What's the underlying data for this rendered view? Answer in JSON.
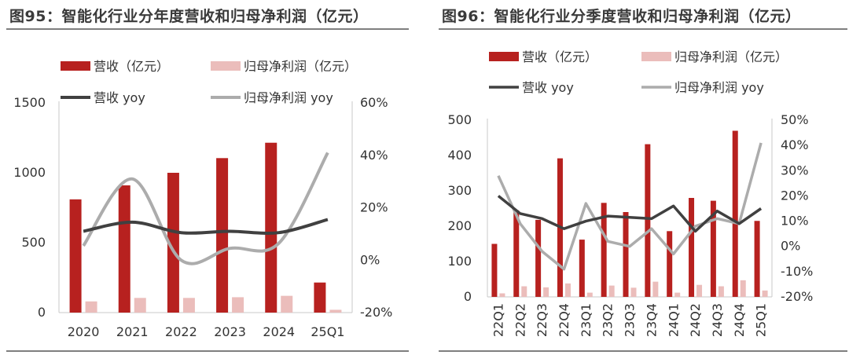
{
  "colors": {
    "revenue_bar": "#B7211F",
    "profit_bar": "#EBBDBB",
    "revenue_yoy_line": "#404040",
    "profit_yoy_line": "#ACACAC"
  },
  "charts": [
    {
      "title": "图95：智能化行业分年度营收和归母净利润（亿元）",
      "chart_data": {
        "type": "bar",
        "categories": [
          "2020",
          "2021",
          "2022",
          "2023",
          "2024",
          "25Q1"
        ],
        "series": [
          {
            "name": "营收（亿元）",
            "type": "bar",
            "axis": "left",
            "values": [
              810,
              910,
              1000,
              1105,
              1215,
              215
            ]
          },
          {
            "name": "归母净利润（亿元）",
            "type": "bar",
            "axis": "left",
            "values": [
              80,
              105,
              105,
              110,
              120,
              20
            ]
          },
          {
            "name": "营收 yoy",
            "type": "line",
            "axis": "right",
            "values": [
              0.11,
              0.145,
              0.105,
              0.11,
              0.105,
              0.155
            ]
          },
          {
            "name": "归母净利润 yoy",
            "type": "line",
            "axis": "right",
            "values": [
              0.055,
              0.31,
              0,
              0.045,
              0.065,
              0.41
            ]
          }
        ],
        "ylim": [
          0,
          1500
        ],
        "yticks": [
          "0",
          "500",
          "1000",
          "1500"
        ],
        "y2lim": [
          -0.2,
          0.6
        ],
        "y2ticks": [
          "-20%",
          "0%",
          "20%",
          "40%",
          "60%"
        ],
        "legend": "top"
      }
    },
    {
      "title": "图96：智能化行业分季度营收和归母净利润（亿元）",
      "chart_data": {
        "type": "bar",
        "categories": [
          "22Q1",
          "22Q2",
          "22Q3",
          "22Q4",
          "23Q1",
          "23Q2",
          "23Q3",
          "23Q4",
          "24Q1",
          "24Q2",
          "24Q3",
          "24Q4",
          "25Q1"
        ],
        "series": [
          {
            "name": "营收（亿元）",
            "type": "bar",
            "axis": "left",
            "values": [
              150,
              245,
              218,
              392,
              162,
              266,
              240,
              432,
              186,
              280,
              272,
              470,
              215
            ]
          },
          {
            "name": "归母净利润（亿元）",
            "type": "bar",
            "axis": "left",
            "values": [
              10,
              30,
              27,
              38,
              12,
              32,
              26,
              43,
              12,
              34,
              30,
              47,
              18
            ]
          },
          {
            "name": "营收 yoy",
            "type": "line",
            "axis": "right",
            "values": [
              0.2,
              0.13,
              0.11,
              0.07,
              0.1,
              0.12,
              0.115,
              0.11,
              0.16,
              0.06,
              0.14,
              0.09,
              0.15
            ]
          },
          {
            "name": "归母净利润 yoy",
            "type": "line",
            "axis": "right",
            "values": [
              0.28,
              0.09,
              -0.02,
              -0.09,
              0.17,
              0.02,
              0,
              0.07,
              -0.03,
              0.08,
              0.11,
              0.09,
              0.41
            ]
          }
        ],
        "ylim": [
          0,
          500
        ],
        "yticks": [
          "0",
          "100",
          "200",
          "300",
          "400",
          "500"
        ],
        "y2lim": [
          -0.2,
          0.5
        ],
        "y2ticks": [
          "-20%",
          "-10%",
          "0%",
          "10%",
          "20%",
          "30%",
          "40%",
          "50%"
        ],
        "legend": "top"
      }
    }
  ]
}
